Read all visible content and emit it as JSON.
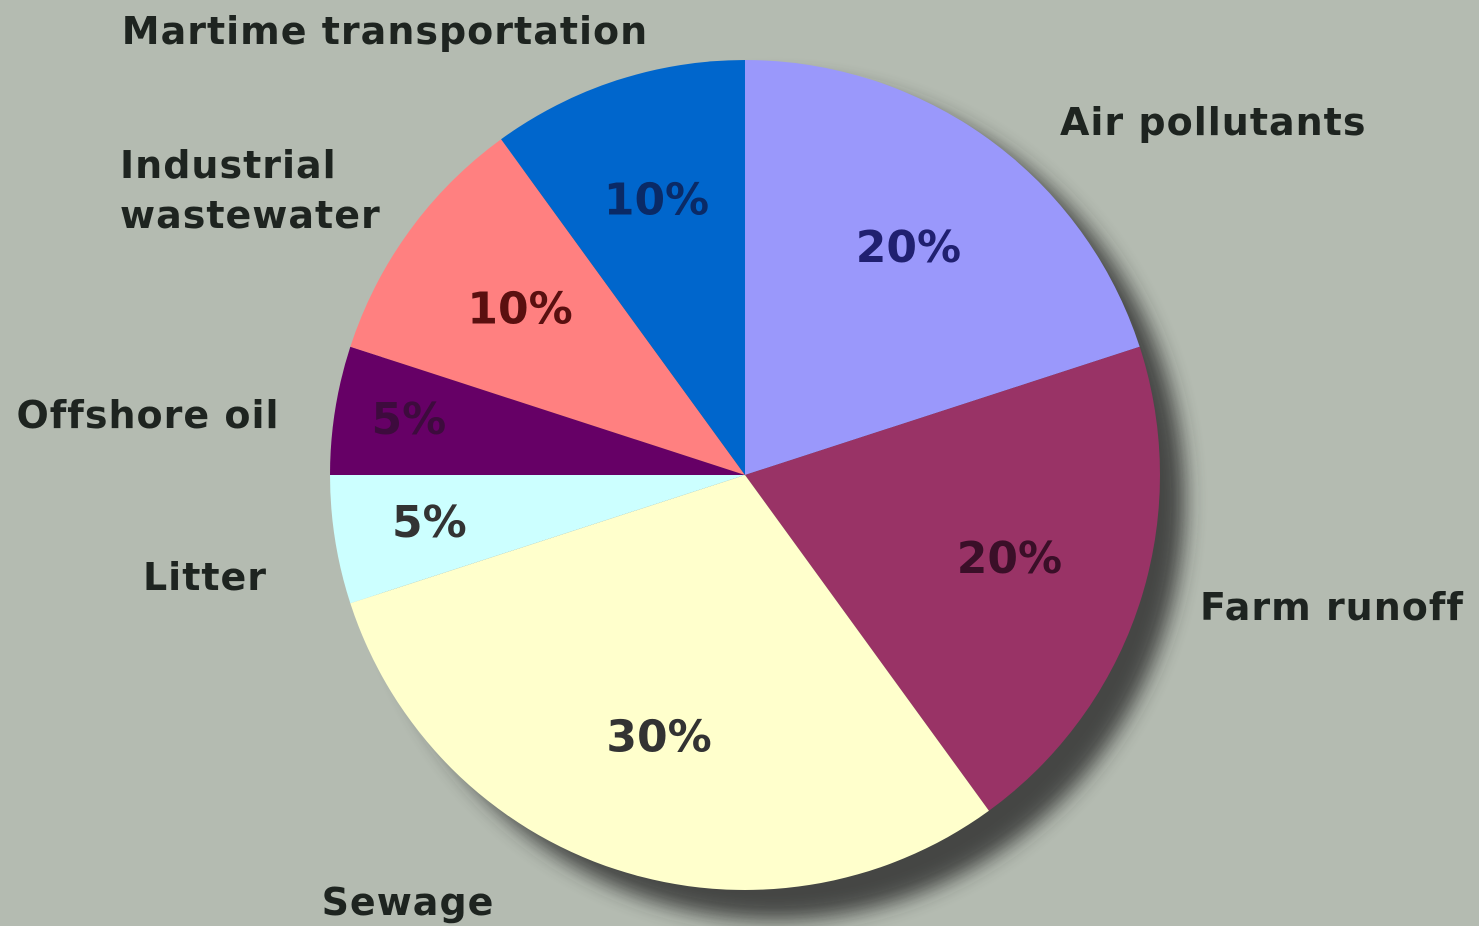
{
  "chart_data": {
    "type": "pie",
    "start_angle_deg": 0,
    "direction": "clockwise",
    "slices": [
      {
        "label": "Air pollutants",
        "value": 20,
        "value_label": "20%",
        "color": "#9a98fb",
        "label_color": "#202070"
      },
      {
        "label": "Farm runoff",
        "value": 20,
        "value_label": "20%",
        "color": "#993366",
        "label_color": "#3a0f28"
      },
      {
        "label": "Sewage",
        "value": 30,
        "value_label": "30%",
        "color": "#ffffcc",
        "label_color": "#333333"
      },
      {
        "label": "Litter",
        "value": 5,
        "value_label": "5%",
        "color": "#ccffff",
        "label_color": "#333333"
      },
      {
        "label": "Offshore oil",
        "value": 5,
        "value_label": "5%",
        "color": "#660066",
        "label_color": "#3d0b3d"
      },
      {
        "label": "Industrial wastewater",
        "label_lines": [
          "Industrial",
          "wastewater"
        ],
        "value": 10,
        "value_label": "10%",
        "color": "#ff8080",
        "label_color": "#5a1010"
      },
      {
        "label": "Martime transportation",
        "value": 10,
        "value_label": "10%",
        "color": "#0066cc",
        "label_color": "#0a2a66"
      }
    ]
  }
}
